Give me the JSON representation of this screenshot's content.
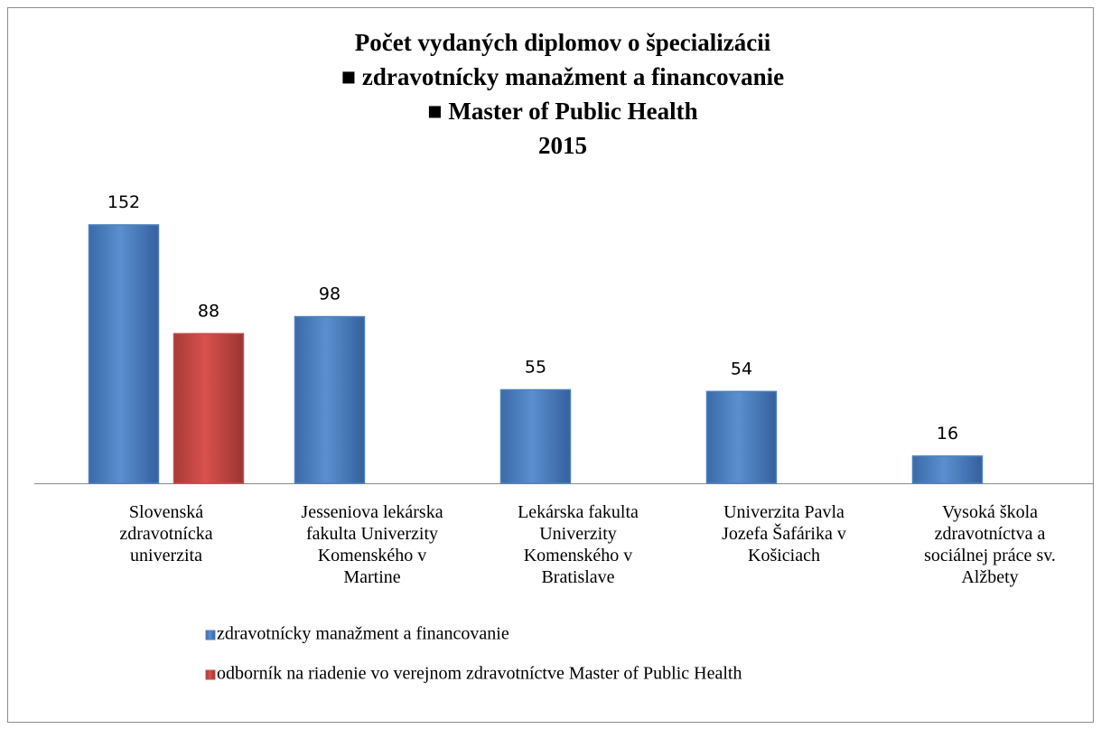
{
  "chart_data": {
    "type": "bar",
    "title": [
      "Počet vydaných diplomov o špecializácii",
      "■ zdravotnícky manažment a financovanie",
      "■ Master of Public Health",
      "2015"
    ],
    "categories": [
      "Slovenská\nzdravotnícka\nuniverzita",
      "Jesseniova lekárska\nfakulta Univerzity\nKomenského v\nMartine",
      "Lekárska fakulta\nUniverzity\nKomenského v\nBratislave",
      "Univerzita Pavla\nJozefa Šafárika v\nKošiciach",
      "Vysoká škola\nzdravotníctva a\nsociálnej práce sv.\nAlžbety"
    ],
    "series": [
      {
        "name": "zdravotnícky manažment a financovanie",
        "color": "#4f81bd",
        "values": [
          152,
          98,
          55,
          54,
          16
        ]
      },
      {
        "name": "odborník na riadenie vo verejnom zdravotníctve Master of Public Health",
        "color": "#c0504d",
        "values": [
          88,
          null,
          null,
          null,
          null
        ]
      }
    ],
    "legend": "bottom-left"
  }
}
